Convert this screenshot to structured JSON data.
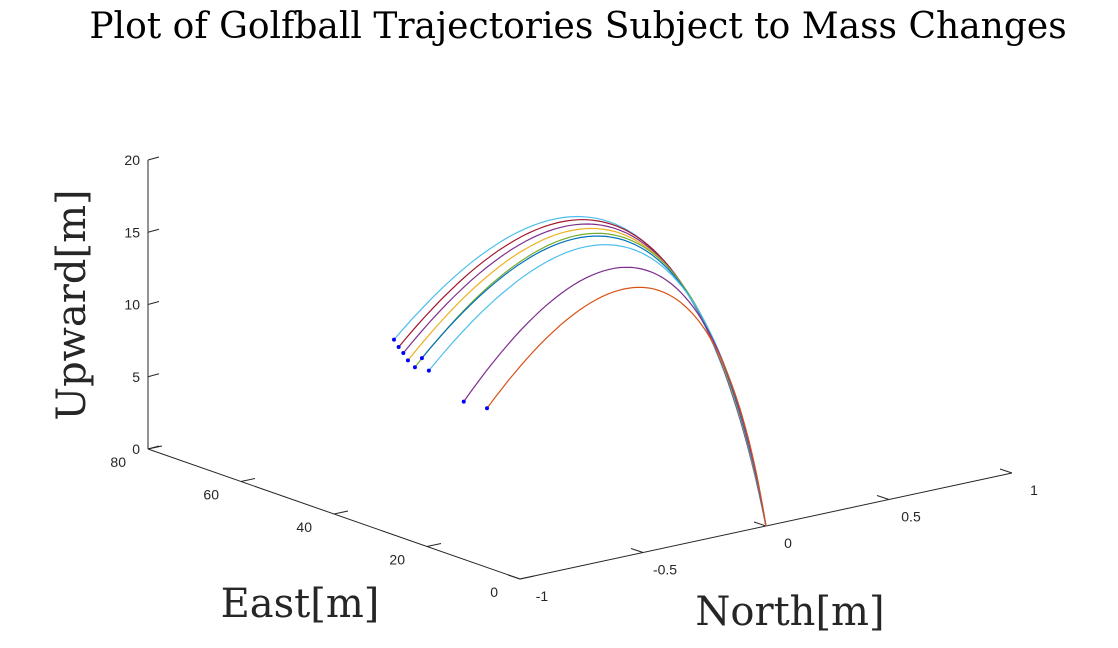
{
  "chart_data": {
    "type": "line",
    "projection": "3d",
    "title": "Plot of Golfball Trajectories Subject to Mass Changes",
    "xlabel": "East[m]",
    "ylabel": "North[m]",
    "zlabel": "Upward[m]",
    "xlim": [
      0,
      80
    ],
    "ylim": [
      -1,
      1
    ],
    "zlim": [
      0,
      20
    ],
    "xticks": [
      "0",
      "20",
      "40",
      "60",
      "80"
    ],
    "yticks": [
      "-1",
      "-0.5",
      "0",
      "0.5",
      "1"
    ],
    "zticks": [
      "0",
      "5",
      "10",
      "15",
      "20"
    ],
    "grid": false,
    "legend": "none",
    "endpoint_marker_color": "#0000ff",
    "series": [
      {
        "color": "#4dbeee",
        "end": [
          80.0,
          0,
          3.9
        ],
        "apex": [
          31.0,
          0,
          17.2
        ]
      },
      {
        "color": "#a2142f",
        "end": [
          79.0,
          0,
          3.5
        ],
        "apex": [
          30.5,
          0,
          17.1
        ]
      },
      {
        "color": "#7e2f8e",
        "end": [
          78.0,
          0,
          3.2
        ],
        "apex": [
          30.0,
          0,
          16.9
        ]
      },
      {
        "color": "#edb120",
        "end": [
          77.0,
          0,
          2.8
        ],
        "apex": [
          29.5,
          0,
          16.7
        ]
      },
      {
        "color": "#77ac30",
        "end": [
          75.5,
          0,
          2.5
        ],
        "apex": [
          28.7,
          0,
          16.5
        ]
      },
      {
        "color": "#0072bd",
        "end": [
          74.0,
          0,
          3.3
        ],
        "apex": [
          28.0,
          0,
          16.3
        ]
      },
      {
        "color": "#4dbeee",
        "end": [
          72.5,
          0,
          2.6
        ],
        "apex": [
          27.0,
          0,
          15.9
        ]
      },
      {
        "color": "#7e2f8e",
        "end": [
          65.0,
          0,
          1.3
        ],
        "apex": [
          24.5,
          0,
          14.8
        ]
      },
      {
        "color": "#d95319",
        "end": [
          60.0,
          0,
          1.4
        ],
        "apex": [
          22.0,
          0,
          13.7
        ]
      }
    ]
  }
}
